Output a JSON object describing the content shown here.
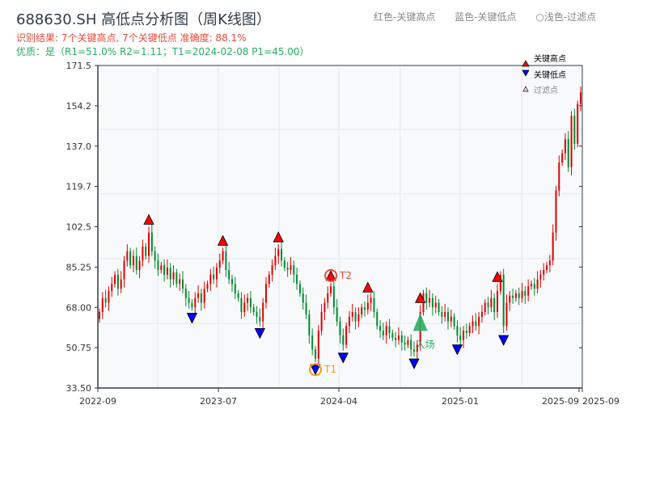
{
  "title": "688630.SH 高低点分析图（周K线图）",
  "result_line": "识别结果: 7个关键高点, 7个关键低点  准确度: 88.1%",
  "quality_line": "优质：是（R1=51.0%  R2=1.11；T1=2024-02-08 P1=45.00）",
  "header_legend": [
    "红色-关键高点",
    "蓝色-关键低点",
    "○浅色-过滤点"
  ],
  "colors": {
    "up": "#e00000",
    "down": "#008a2e",
    "high_marker": "#ff0000",
    "low_marker": "#0000ff",
    "t1": "#f39c12",
    "t2": "#e74c3c",
    "entry": "#27ae60"
  },
  "chart_data": {
    "type": "candlestick",
    "title": "688630.SH 高低点分析图（周K线图）",
    "ylim": [
      33.5,
      171.5
    ],
    "yticks": [
      "33.50",
      "50.75",
      "68.00",
      "85.25",
      "102.5",
      "119.7",
      "137.0",
      "154.2",
      "171.5"
    ],
    "xticks": [
      "2022-09",
      "2023-07",
      "2024-04",
      "2025-01",
      "2025-09",
      "2025-09"
    ],
    "grid": true,
    "legend": {
      "placement": "top-right",
      "items": [
        "关键高点",
        "关键低点",
        "过滤点"
      ]
    },
    "closes": [
      66,
      72,
      70,
      75,
      78,
      82,
      76,
      80,
      88,
      92,
      86,
      90,
      84,
      88,
      94,
      90,
      100,
      92,
      88,
      84,
      86,
      82,
      85,
      80,
      83,
      78,
      80,
      76,
      72,
      70,
      68,
      72,
      74,
      70,
      76,
      78,
      82,
      80,
      85,
      88,
      92,
      84,
      80,
      78,
      74,
      72,
      66,
      70,
      72,
      68,
      66,
      64,
      62,
      70,
      78,
      82,
      86,
      90,
      93,
      88,
      85,
      84,
      86,
      82,
      78,
      74,
      70,
      65,
      56,
      50,
      46,
      58,
      66,
      70,
      74,
      77,
      68,
      62,
      56,
      52,
      60,
      64,
      66,
      62,
      65,
      68,
      67,
      70,
      72,
      66,
      60,
      58,
      56,
      60,
      57,
      55,
      54,
      56,
      53,
      52,
      54,
      50,
      49,
      52,
      66,
      74,
      70,
      72,
      68,
      70,
      66,
      64,
      66,
      62,
      64,
      60,
      56,
      54,
      58,
      57,
      60,
      62,
      60,
      64,
      66,
      70,
      68,
      72,
      66,
      75,
      82,
      60,
      70,
      73,
      72,
      74,
      72,
      75,
      73,
      77,
      78,
      76,
      80,
      82,
      84,
      86,
      88,
      100,
      118,
      130,
      134,
      140,
      128,
      150,
      138,
      155,
      160
    ],
    "key_highs": [
      16,
      40,
      58,
      75,
      87,
      104,
      129
    ],
    "key_lows": [
      30,
      52,
      70,
      79,
      102,
      116,
      131
    ],
    "annotations": {
      "T1": {
        "label": "T1",
        "date": "2024-02-08",
        "price": 45.0
      },
      "T2": {
        "label": "T2"
      },
      "entry": {
        "label": "入场",
        "price": 60
      }
    }
  }
}
